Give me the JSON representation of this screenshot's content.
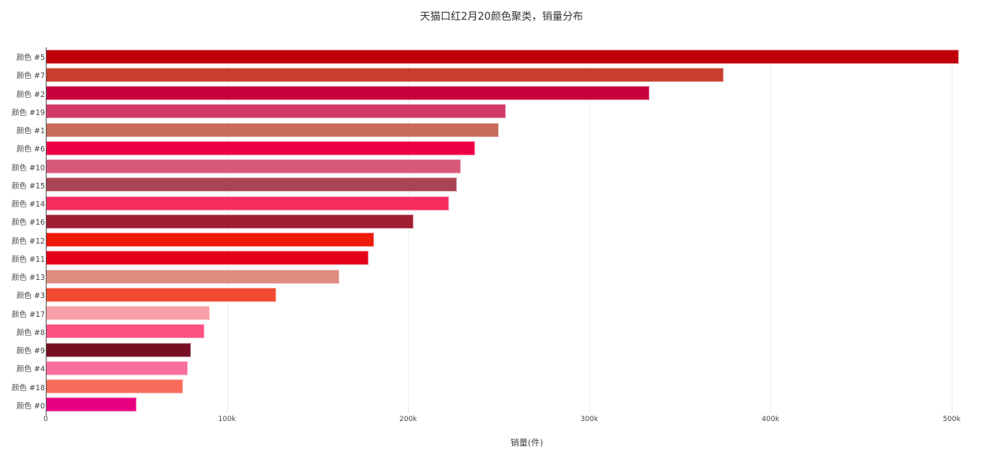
{
  "chart_data": {
    "type": "bar",
    "orientation": "horizontal",
    "title": "天猫口红2月20颜色聚类，销量分布",
    "xlabel": "销量(件)",
    "ylabel": "",
    "xlim": [
      0,
      505000
    ],
    "grid": true,
    "legend": null,
    "xticks": [
      "0",
      "100k",
      "200k",
      "300k",
      "400k",
      "500k"
    ],
    "categories": [
      "颜色 #5",
      "颜色 #7",
      "颜色 #2",
      "颜色 #19",
      "颜色 #1",
      "颜色 #6",
      "颜色 #10",
      "颜色 #15",
      "颜色 #14",
      "颜色 #16",
      "颜色 #12",
      "颜色 #11",
      "颜色 #13",
      "颜色 #3",
      "颜色 #17",
      "颜色 #8",
      "颜色 #9",
      "颜色 #4",
      "颜色 #18",
      "颜色 #0"
    ],
    "values": [
      504000,
      374000,
      333000,
      254000,
      250000,
      237000,
      229000,
      227000,
      222500,
      203000,
      181000,
      178000,
      162000,
      127000,
      90500,
      87500,
      80000,
      78500,
      76000,
      50000
    ],
    "colors": [
      "#c00008",
      "#c83e2e",
      "#c8003e",
      "#d13a64",
      "#c86a5c",
      "#ee0046",
      "#d85a7a",
      "#aa4455",
      "#f52e5e",
      "#a01e32",
      "#ee1a0a",
      "#e4001a",
      "#e08c80",
      "#f24a30",
      "#f8a0a8",
      "#fc5080",
      "#781024",
      "#fa6e9c",
      "#f86c5c",
      "#e80080"
    ]
  }
}
